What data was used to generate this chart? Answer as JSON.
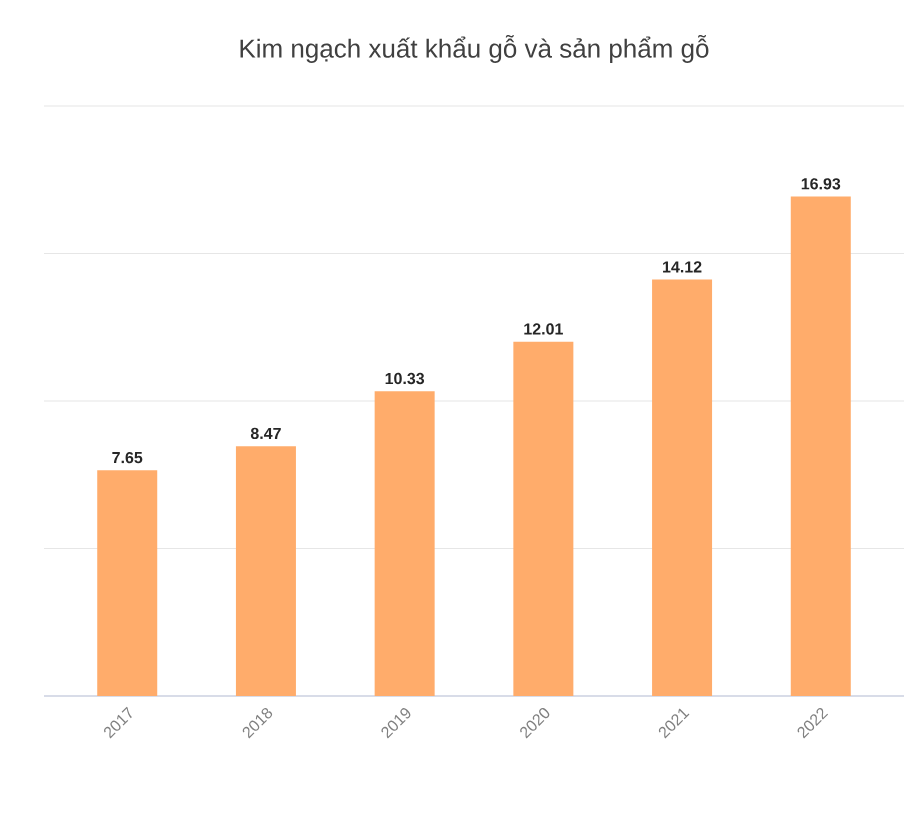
{
  "chart_data": {
    "type": "bar",
    "title": "Kim ngạch xuất khẩu gỗ và sản phẩm gỗ",
    "categories": [
      "2017",
      "2018",
      "2019",
      "2020",
      "2021",
      "2022"
    ],
    "values": [
      7.65,
      8.47,
      10.33,
      12.01,
      14.12,
      16.93
    ],
    "color": "#ffac6b",
    "ylim": [
      0,
      20
    ],
    "yticks": [
      {
        "value": 0,
        "label": null
      },
      {
        "value": 5,
        "label": null
      },
      {
        "value": 10,
        "label": null
      },
      {
        "value": 15,
        "label": null
      },
      {
        "value": 20,
        "label": null
      }
    ],
    "tick_labels": "x",
    "grid": "y",
    "data_labels": true
  }
}
